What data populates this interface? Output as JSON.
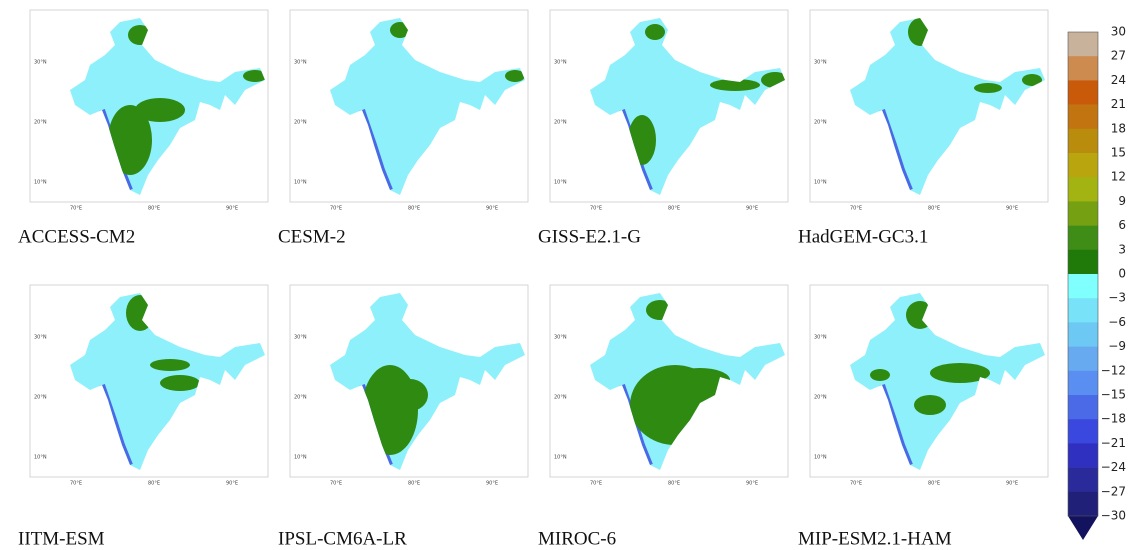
{
  "panels": [
    {
      "name": "ACCESS-CM2"
    },
    {
      "name": "CESM-2"
    },
    {
      "name": "GISS-E2.1-G"
    },
    {
      "name": "HadGEM-GC3.1"
    },
    {
      "name": "IITM-ESM"
    },
    {
      "name": "IPSL-CM6A-LR"
    },
    {
      "name": "MIROC-6"
    },
    {
      "name": "MIP-ESM2.1-HAM"
    }
  ],
  "lat_labels": [
    "30°N",
    "20°N",
    "10°N"
  ],
  "lon_labels": [
    "70°E",
    "80°E",
    "90°E"
  ],
  "colorbar": {
    "labels": [
      "30",
      "27",
      "24",
      "21",
      "18",
      "15",
      "12",
      "9",
      "6",
      "3",
      "0",
      "−3",
      "−6",
      "−9",
      "−12",
      "−15",
      "−18",
      "−21",
      "−24",
      "−27",
      "−30"
    ],
    "colors": [
      "#c9b29b",
      "#cd8b4f",
      "#c85a0a",
      "#c27410",
      "#b98c0e",
      "#b9a60f",
      "#a3b312",
      "#74a012",
      "#3f8c16",
      "#1f7a0a",
      "#80ffff",
      "#78e2f8",
      "#6ec8f4",
      "#68aaf0",
      "#5a8ef0",
      "#4a6ae8",
      "#3a48e0",
      "#3030c0",
      "#2a2a9a",
      "#202078"
    ],
    "extend_color": "#12125e"
  }
}
